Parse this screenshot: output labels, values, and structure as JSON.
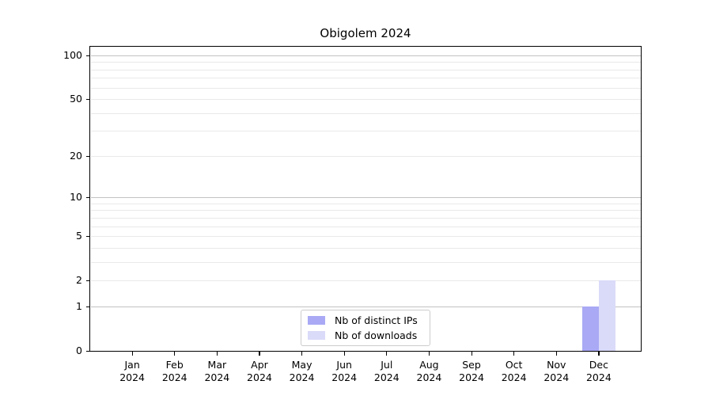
{
  "title": "Obigolem 2024",
  "chart_data": {
    "type": "bar",
    "title": "Obigolem 2024",
    "categories": [
      "Jan",
      "Feb",
      "Mar",
      "Apr",
      "May",
      "Jun",
      "Jul",
      "Aug",
      "Sep",
      "Oct",
      "Nov",
      "Dec"
    ],
    "category_year": "2024",
    "series": [
      {
        "name": "Nb of distinct IPs",
        "color": "#a9a9f5",
        "values": [
          0,
          0,
          0,
          0,
          0,
          0,
          0,
          0,
          0,
          0,
          0,
          1
        ]
      },
      {
        "name": "Nb of downloads",
        "color": "#dadaf9",
        "values": [
          0,
          0,
          0,
          0,
          0,
          0,
          0,
          0,
          0,
          0,
          0,
          2
        ]
      }
    ],
    "y_ticks": [
      0,
      1,
      2,
      5,
      10,
      20,
      50,
      100
    ],
    "y_major_gridlines": [
      1,
      10,
      100
    ],
    "y_minor_gridlines": [
      2,
      3,
      4,
      5,
      6,
      7,
      8,
      9,
      20,
      30,
      40,
      50,
      60,
      70,
      80,
      90
    ],
    "y_scale": "log1p",
    "ylim": [
      0,
      116
    ],
    "xlabel": "",
    "ylabel": "",
    "grid": "horizontal",
    "legend": {
      "position": "bottom-center"
    },
    "colors": {
      "major_grid": "#c2c2c2",
      "minor_grid": "#e9e9e9",
      "axis": "#000000",
      "background": "#ffffff",
      "legend_border": "#cccccc"
    }
  }
}
